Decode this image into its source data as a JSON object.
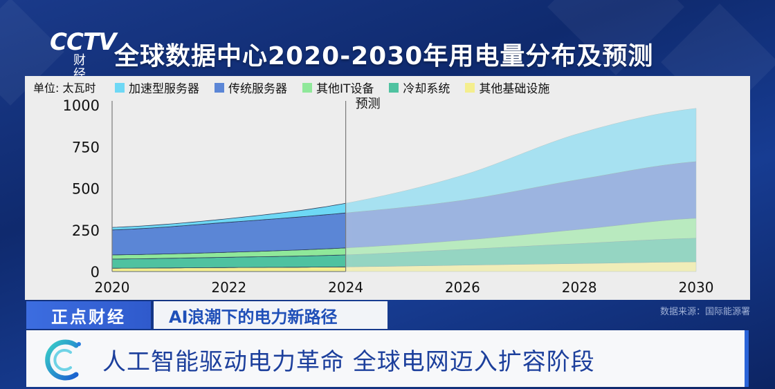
{
  "channel": {
    "logo_main": "CCTV",
    "logo_sub": "财经"
  },
  "title": "全球数据中心2020-2030年用电量分布及预测",
  "chart_data": {
    "type": "area",
    "unit_label": "单位: 太瓦时",
    "forecast_label": "预测",
    "x": [
      2020,
      2022,
      2024,
      2026,
      2028,
      2030
    ],
    "x_ticks": [
      "2020",
      "2022",
      "2024",
      "2026",
      "2028",
      "2030"
    ],
    "y_ticks": [
      "1000",
      "750",
      "500",
      "250",
      "0"
    ],
    "ylim": [
      0,
      1000
    ],
    "forecast_start": 2024,
    "series": [
      {
        "name": "其他基础设施",
        "color": "#f4ee8e",
        "values": [
          20,
          24,
          28,
          38,
          48,
          58
        ]
      },
      {
        "name": "冷却系统",
        "color": "#4fc2a0",
        "values": [
          55,
          62,
          72,
          95,
          120,
          142
        ]
      },
      {
        "name": "其他IT设备",
        "color": "#8fe89a",
        "values": [
          25,
          30,
          42,
          55,
          85,
          120
        ]
      },
      {
        "name": "传统服务器",
        "color": "#5b86d6",
        "values": [
          150,
          180,
          210,
          240,
          300,
          340
        ]
      },
      {
        "name": "加速型服务器",
        "color": "#6ed8f5",
        "values": [
          15,
          22,
          58,
          150,
          277,
          320
        ]
      }
    ],
    "legend_order": [
      "加速型服务器",
      "传统服务器",
      "其他IT设备",
      "冷却系统",
      "其他基础设施"
    ]
  },
  "source": "数据来源：国际能源署",
  "banner": {
    "program": "正点财经",
    "topic": "AI浪潮下的电力新路径",
    "headline": "人工智能驱动电力革命 全球电网迈入扩容阶段"
  }
}
